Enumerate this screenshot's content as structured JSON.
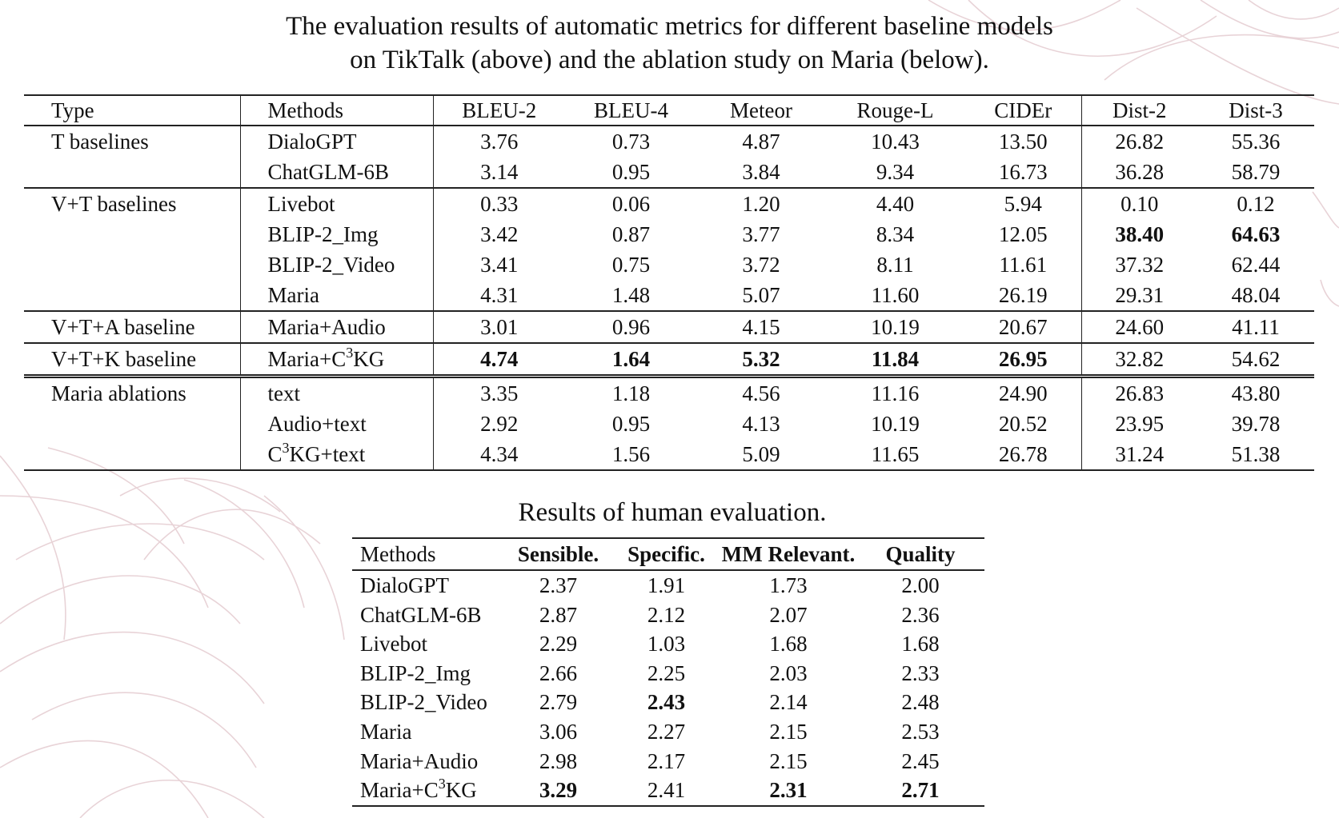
{
  "caption_top_line1": "The evaluation results of automatic metrics for different baseline models",
  "caption_top_line2": "on TikTalk (above) and the ablation study on Maria (below).",
  "table1": {
    "headers": [
      "Type",
      "Methods",
      "BLEU-2",
      "BLEU-4",
      "Meteor",
      "Rouge-L",
      "CIDEr",
      "Dist-2",
      "Dist-3"
    ],
    "rows": [
      {
        "type": "T baselines",
        "method": "DialoGPT",
        "values": [
          "3.76",
          "0.73",
          "4.87",
          "10.43",
          "13.50",
          "26.82",
          "55.36"
        ]
      },
      {
        "type": "",
        "method": "ChatGLM-6B",
        "values": [
          "3.14",
          "0.95",
          "3.84",
          "9.34",
          "16.73",
          "36.28",
          "58.79"
        ]
      },
      {
        "type": "V+T baselines",
        "method": "Livebot",
        "values": [
          "0.33",
          "0.06",
          "1.20",
          "4.40",
          "5.94",
          "0.10",
          "0.12"
        ]
      },
      {
        "type": "",
        "method": "BLIP-2_Img",
        "values": [
          "3.42",
          "0.87",
          "3.77",
          "8.34",
          "12.05",
          "38.40",
          "64.63"
        ]
      },
      {
        "type": "",
        "method": "BLIP-2_Video",
        "values": [
          "3.41",
          "0.75",
          "3.72",
          "8.11",
          "11.61",
          "37.32",
          "62.44"
        ]
      },
      {
        "type": "",
        "method": "Maria",
        "values": [
          "4.31",
          "1.48",
          "5.07",
          "11.60",
          "26.19",
          "29.31",
          "48.04"
        ]
      },
      {
        "type": "V+T+A baseline",
        "method": "Maria+Audio",
        "values": [
          "3.01",
          "0.96",
          "4.15",
          "10.19",
          "20.67",
          "24.60",
          "41.11"
        ]
      },
      {
        "type": "V+T+K baseline",
        "method_main": "Maria+C",
        "method_sup": "3",
        "method_tail": "KG",
        "values": [
          "4.74",
          "1.64",
          "5.32",
          "11.84",
          "26.95",
          "32.82",
          "54.62"
        ]
      },
      {
        "type": "Maria ablations",
        "method": "text",
        "values": [
          "3.35",
          "1.18",
          "4.56",
          "11.16",
          "24.90",
          "26.83",
          "43.80"
        ]
      },
      {
        "type": "",
        "method": "Audio+text",
        "values": [
          "2.92",
          "0.95",
          "4.13",
          "10.19",
          "20.52",
          "23.95",
          "39.78"
        ]
      },
      {
        "type": "",
        "method_main": "C",
        "method_sup": "3",
        "method_tail": "KG+text",
        "values": [
          "4.34",
          "1.56",
          "5.09",
          "11.65",
          "26.78",
          "31.24",
          "51.38"
        ]
      }
    ]
  },
  "caption_bottom": "Results of human evaluation.",
  "table2": {
    "headers": [
      "Methods",
      "Sensible.",
      "Specific.",
      "MM Relevant.",
      "Quality"
    ],
    "rows": [
      {
        "method": "DialoGPT",
        "values": [
          "2.37",
          "1.91",
          "1.73",
          "2.00"
        ]
      },
      {
        "method": "ChatGLM-6B",
        "values": [
          "2.87",
          "2.12",
          "2.07",
          "2.36"
        ]
      },
      {
        "method": "Livebot",
        "values": [
          "2.29",
          "1.03",
          "1.68",
          "1.68"
        ]
      },
      {
        "method": "BLIP-2_Img",
        "values": [
          "2.66",
          "2.25",
          "2.03",
          "2.33"
        ]
      },
      {
        "method": "BLIP-2_Video",
        "values": [
          "2.79",
          "2.43",
          "2.14",
          "2.48"
        ]
      },
      {
        "method": "Maria",
        "values": [
          "3.06",
          "2.27",
          "2.15",
          "2.53"
        ]
      },
      {
        "method": "Maria+Audio",
        "values": [
          "2.98",
          "2.17",
          "2.15",
          "2.45"
        ]
      },
      {
        "method_main": "Maria+C",
        "method_sup": "3",
        "method_tail": "KG",
        "values": [
          "3.29",
          "2.41",
          "2.31",
          "2.71"
        ]
      }
    ]
  },
  "colors": {
    "decoration": "#e6cfd3",
    "text": "#111111",
    "rule": "#222222"
  }
}
